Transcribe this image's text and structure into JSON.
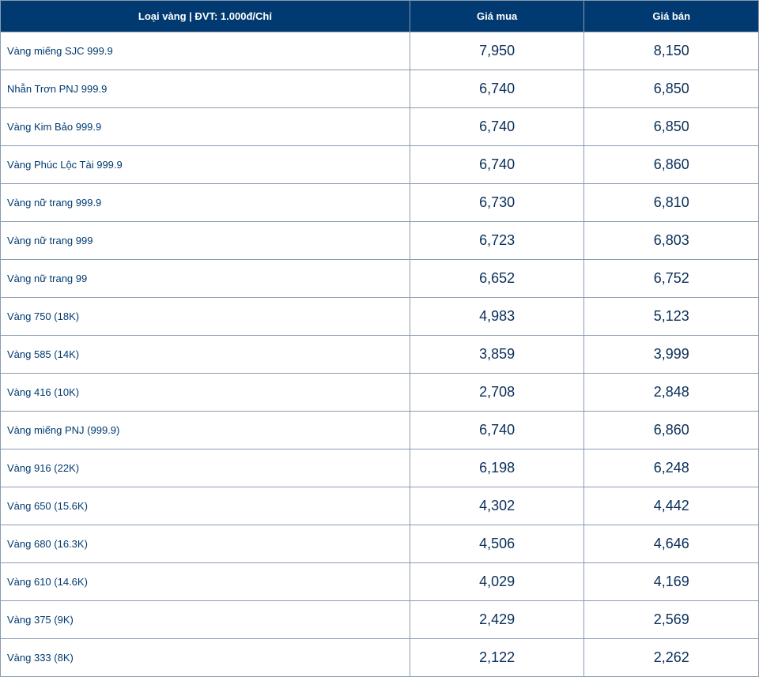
{
  "table": {
    "header_bg": "#003a70",
    "header_fg": "#ffffff",
    "border_color": "#8a9bb0",
    "name_color": "#003a70",
    "price_color": "#0a2f5a",
    "columns": [
      "Loại vàng | ĐVT: 1.000đ/Chỉ",
      "Giá mua",
      "Giá bán"
    ],
    "rows": [
      {
        "name": "Vàng miếng SJC 999.9",
        "buy": "7,950",
        "sell": "8,150"
      },
      {
        "name": "Nhẫn Trơn PNJ 999.9",
        "buy": "6,740",
        "sell": "6,850"
      },
      {
        "name": "Vàng Kim Bảo 999.9",
        "buy": "6,740",
        "sell": "6,850"
      },
      {
        "name": "Vàng Phúc Lộc Tài 999.9",
        "buy": "6,740",
        "sell": "6,860"
      },
      {
        "name": "Vàng nữ trang 999.9",
        "buy": "6,730",
        "sell": "6,810"
      },
      {
        "name": "Vàng nữ trang 999",
        "buy": "6,723",
        "sell": "6,803"
      },
      {
        "name": "Vàng nữ trang 99",
        "buy": "6,652",
        "sell": "6,752"
      },
      {
        "name": "Vàng 750 (18K)",
        "buy": "4,983",
        "sell": "5,123"
      },
      {
        "name": "Vàng 585 (14K)",
        "buy": "3,859",
        "sell": "3,999"
      },
      {
        "name": "Vàng 416 (10K)",
        "buy": "2,708",
        "sell": "2,848"
      },
      {
        "name": "Vàng miếng PNJ (999.9)",
        "buy": "6,740",
        "sell": "6,860"
      },
      {
        "name": "Vàng 916 (22K)",
        "buy": "6,198",
        "sell": "6,248"
      },
      {
        "name": "Vàng 650 (15.6K)",
        "buy": "4,302",
        "sell": "4,442"
      },
      {
        "name": "Vàng 680 (16.3K)",
        "buy": "4,506",
        "sell": "4,646"
      },
      {
        "name": "Vàng 610 (14.6K)",
        "buy": "4,029",
        "sell": "4,169"
      },
      {
        "name": "Vàng 375 (9K)",
        "buy": "2,429",
        "sell": "2,569"
      },
      {
        "name": "Vàng 333 (8K)",
        "buy": "2,122",
        "sell": "2,262"
      }
    ]
  }
}
